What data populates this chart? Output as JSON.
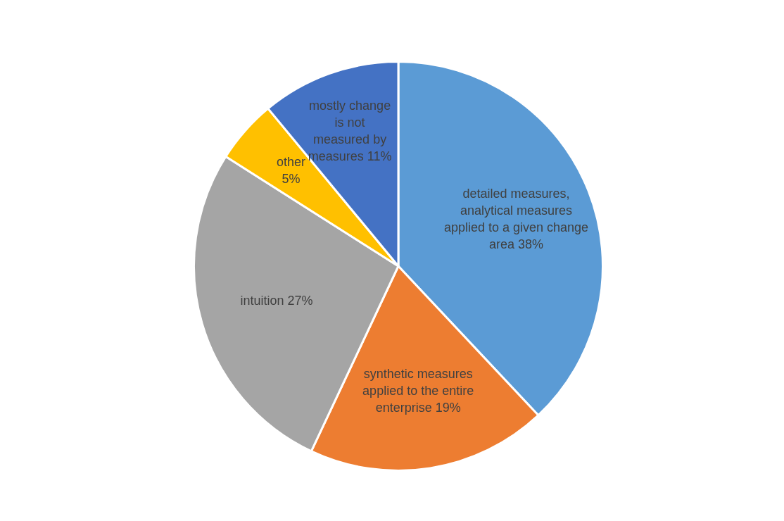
{
  "chart_data": {
    "type": "pie",
    "categories": [
      "detailed measures, analytical measures applied to a given change area",
      "synthetic measures applied to the entire enterprise",
      "intuition",
      "other",
      "mostly change is not measured by measures"
    ],
    "values": [
      38,
      19,
      27,
      5,
      11
    ],
    "value_labels": [
      "38%",
      "19%",
      "27%",
      "5%",
      "11%"
    ],
    "colors": [
      "#5b9bd5",
      "#ed7d31",
      "#a5a5a5",
      "#ffc000",
      "#4472c4"
    ],
    "legend": false
  }
}
